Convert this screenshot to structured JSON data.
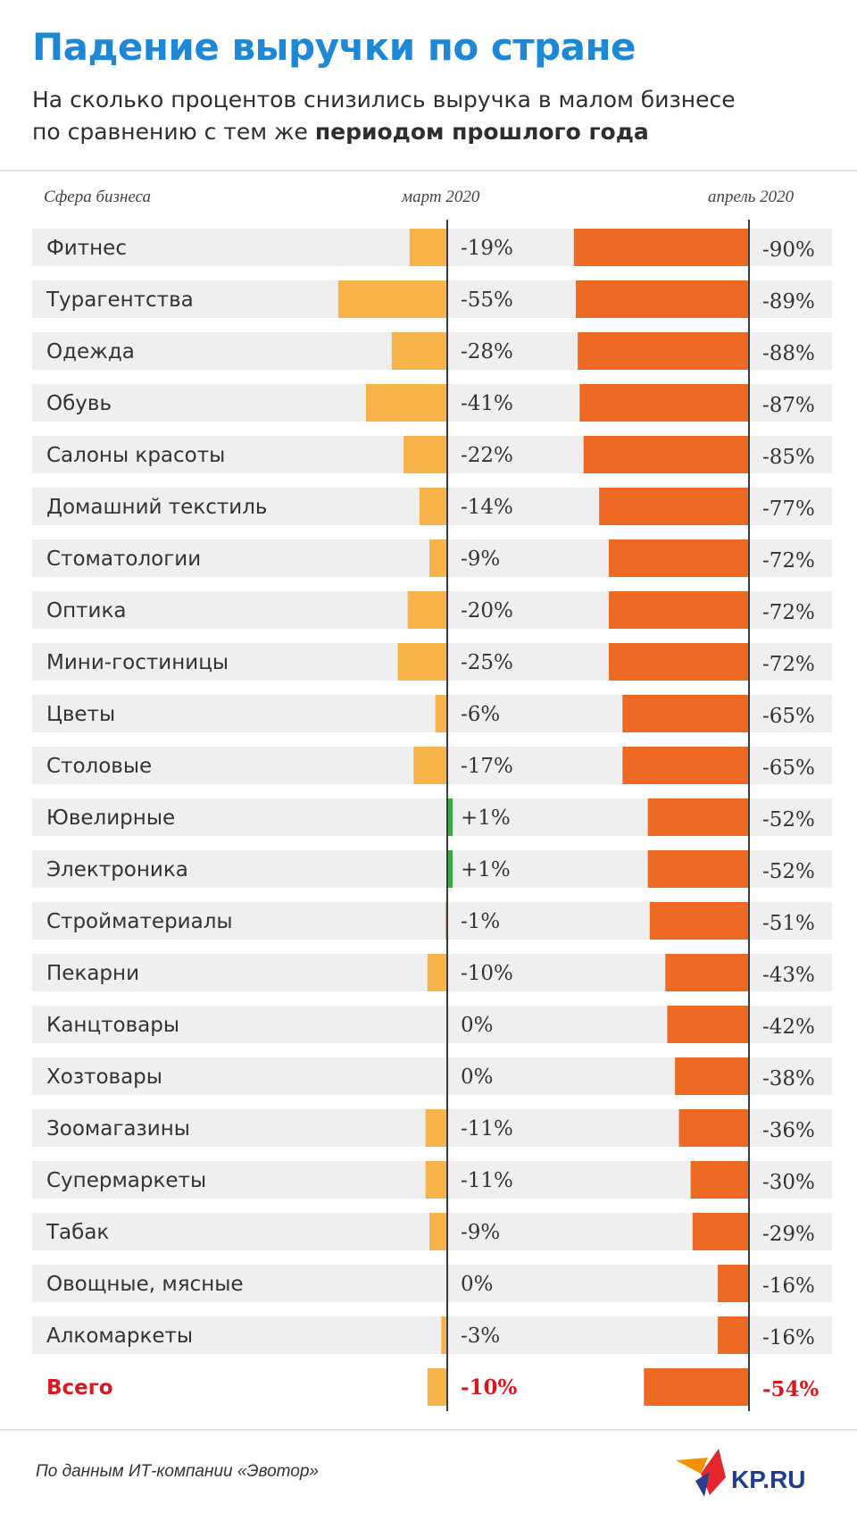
{
  "title": "Падение выручки по стране",
  "subtitle": {
    "line1": "На сколько процентов снизились выручка в малом бизнесе",
    "line2_start": "по сравнению с тем же ",
    "line2_bold": "периодом прошлого года"
  },
  "source": "По данным ИТ-компании «Эвотор»",
  "logo_text": "KP.RU",
  "colors": {
    "title": "#1e88d6",
    "march_bar": "#f8b24a",
    "april_bar": "#ec6a23",
    "positive_bar": "#3caa49",
    "row_background": "#efefef",
    "total_label": "#d7191f"
  },
  "chart_data": {
    "type": "bar",
    "column_headers": {
      "category": "Сфера бизнеса",
      "march": "март 2020",
      "april": "апрель 2020"
    },
    "categories": [
      "Фитнес",
      "Турагентства",
      "Одежда",
      "Обувь",
      "Салоны красоты",
      "Домашний текстиль",
      "Стоматологии",
      "Оптика",
      "Мини-гостиницы",
      "Цветы",
      "Столовые",
      "Ювелирные",
      "Электроника",
      "Стройматериалы",
      "Пекарни",
      "Канцтовары",
      "Хозтовары",
      "Зоомагазины",
      "Супермаркеты",
      "Табак",
      "Овощные, мясные",
      "Алкомаркеты",
      "Всего"
    ],
    "series": [
      {
        "name": "март 2020",
        "values": [
          -19,
          -55,
          -28,
          -41,
          -22,
          -14,
          -9,
          -20,
          -25,
          -6,
          -17,
          1,
          1,
          -1,
          -10,
          0,
          0,
          -11,
          -11,
          -9,
          0,
          -3,
          -10
        ],
        "labels": [
          "-19%",
          "-55%",
          "-28%",
          "-41%",
          "-22%",
          "-14%",
          "-9%",
          "-20%",
          "-25%",
          "-6%",
          "-17%",
          "+1%",
          "+1%",
          "-1%",
          "-10%",
          "0%",
          "0%",
          "-11%",
          "-11%",
          "-9%",
          "0%",
          "-3%",
          "-10%"
        ]
      },
      {
        "name": "апрель 2020",
        "values": [
          -90,
          -89,
          -88,
          -87,
          -85,
          -77,
          -72,
          -72,
          -72,
          -65,
          -65,
          -52,
          -52,
          -51,
          -43,
          -42,
          -38,
          -36,
          -30,
          -29,
          -16,
          -16,
          -54
        ],
        "labels": [
          "-90%",
          "-89%",
          "-88%",
          "-87%",
          "-85%",
          "-77%",
          "-72%",
          "-72%",
          "-72%",
          "-65%",
          "-65%",
          "-52%",
          "-52%",
          "-51%",
          "-43%",
          "-42%",
          "-38%",
          "-36%",
          "-30%",
          "-29%",
          "-16%",
          "-16%",
          "-54%"
        ]
      }
    ],
    "total_category": "Всего"
  }
}
